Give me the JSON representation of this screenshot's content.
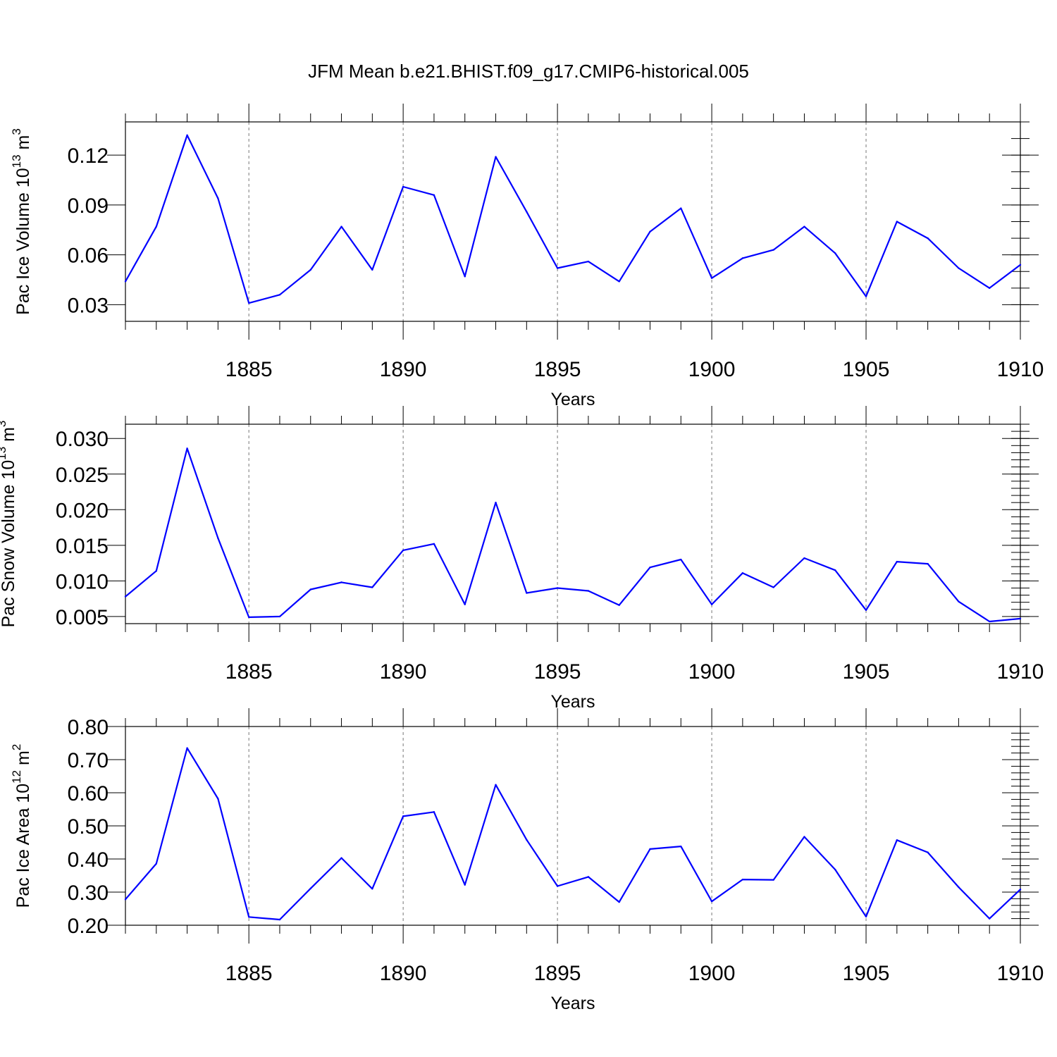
{
  "title": "JFM Mean b.e21.BHIST.f09_g17.CMIP6-historical.005",
  "colors": {
    "series": "#0000ff",
    "axis": "#000000",
    "grid": "#777777"
  },
  "chart_data": [
    {
      "type": "line",
      "id": "ice-volume",
      "ylabel": "Pac Ice Volume 10",
      "ylabel_exp": "13",
      "ylabel_unit": " m",
      "ylabel_unit_exp": "3",
      "xlabel": "Years",
      "xlim": [
        1881,
        1910
      ],
      "ylim": [
        0.02,
        0.14
      ],
      "x_ticks": [
        1885,
        1890,
        1895,
        1900,
        1905,
        1910
      ],
      "x_tick_labels": [
        "1885",
        "1890",
        "1895",
        "1900",
        "1905",
        "1910"
      ],
      "y_ticks": [
        0.03,
        0.06,
        0.09,
        0.12
      ],
      "y_tick_labels": [
        "0.03",
        "0.06",
        "0.09",
        "0.12"
      ],
      "y_minor_step": 0.01,
      "grid": "x-dashed",
      "x": [
        1881,
        1882,
        1883,
        1884,
        1885,
        1886,
        1887,
        1888,
        1889,
        1890,
        1891,
        1892,
        1893,
        1894,
        1895,
        1896,
        1897,
        1898,
        1899,
        1900,
        1901,
        1902,
        1903,
        1904,
        1905,
        1906,
        1907,
        1908,
        1909,
        1910
      ],
      "values": [
        0.044,
        0.077,
        0.132,
        0.094,
        0.031,
        0.036,
        0.051,
        0.077,
        0.051,
        0.101,
        0.096,
        0.047,
        0.119,
        0.086,
        0.052,
        0.056,
        0.044,
        0.074,
        0.088,
        0.046,
        0.058,
        0.063,
        0.077,
        0.061,
        0.035,
        0.08,
        0.07,
        0.052,
        0.04,
        0.054
      ]
    },
    {
      "type": "line",
      "id": "snow-volume",
      "ylabel": "Pac Snow Volume 10",
      "ylabel_exp": "13",
      "ylabel_unit": " m",
      "ylabel_unit_exp": "3",
      "xlabel": "Years",
      "xlim": [
        1881,
        1910
      ],
      "ylim": [
        0.004,
        0.032
      ],
      "x_ticks": [
        1885,
        1890,
        1895,
        1900,
        1905,
        1910
      ],
      "x_tick_labels": [
        "1885",
        "1890",
        "1895",
        "1900",
        "1905",
        "1910"
      ],
      "y_ticks": [
        0.005,
        0.01,
        0.015,
        0.02,
        0.025,
        0.03
      ],
      "y_tick_labels": [
        "0.005",
        "0.010",
        "0.015",
        "0.020",
        "0.025",
        "0.030"
      ],
      "y_minor_step": 0.001,
      "grid": "x-dashed",
      "x": [
        1881,
        1882,
        1883,
        1884,
        1885,
        1886,
        1887,
        1888,
        1889,
        1890,
        1891,
        1892,
        1893,
        1894,
        1895,
        1896,
        1897,
        1898,
        1899,
        1900,
        1901,
        1902,
        1903,
        1904,
        1905,
        1906,
        1907,
        1908,
        1909,
        1910
      ],
      "values": [
        0.0078,
        0.0114,
        0.0286,
        0.016,
        0.0049,
        0.005,
        0.0088,
        0.0098,
        0.0091,
        0.0143,
        0.0152,
        0.0067,
        0.021,
        0.0083,
        0.009,
        0.0086,
        0.0066,
        0.0119,
        0.013,
        0.0067,
        0.0111,
        0.0091,
        0.0132,
        0.0115,
        0.0059,
        0.0127,
        0.0124,
        0.0071,
        0.0043,
        0.0047
      ]
    },
    {
      "type": "line",
      "id": "ice-area",
      "ylabel": "Pac Ice Area 10",
      "ylabel_exp": "12",
      "ylabel_unit": " m",
      "ylabel_unit_exp": "2",
      "xlabel": "Years",
      "xlim": [
        1881,
        1910
      ],
      "ylim": [
        0.2,
        0.8
      ],
      "x_ticks": [
        1885,
        1890,
        1895,
        1900,
        1905,
        1910
      ],
      "x_tick_labels": [
        "1885",
        "1890",
        "1895",
        "1900",
        "1905",
        "1910"
      ],
      "y_ticks": [
        0.2,
        0.3,
        0.4,
        0.5,
        0.6,
        0.7,
        0.8
      ],
      "y_tick_labels": [
        "0.20",
        "0.30",
        "0.40",
        "0.50",
        "0.60",
        "0.70",
        "0.80"
      ],
      "y_minor_step": 0.02,
      "grid": "x-dashed",
      "x": [
        1881,
        1882,
        1883,
        1884,
        1885,
        1886,
        1887,
        1888,
        1889,
        1890,
        1891,
        1892,
        1893,
        1894,
        1895,
        1896,
        1897,
        1898,
        1899,
        1900,
        1901,
        1902,
        1903,
        1904,
        1905,
        1906,
        1907,
        1908,
        1909,
        1910
      ],
      "values": [
        0.278,
        0.386,
        0.735,
        0.582,
        0.225,
        0.217,
        0.311,
        0.403,
        0.31,
        0.529,
        0.542,
        0.322,
        0.624,
        0.458,
        0.318,
        0.346,
        0.27,
        0.43,
        0.438,
        0.272,
        0.338,
        0.337,
        0.467,
        0.368,
        0.226,
        0.457,
        0.42,
        0.315,
        0.22,
        0.308
      ]
    }
  ]
}
